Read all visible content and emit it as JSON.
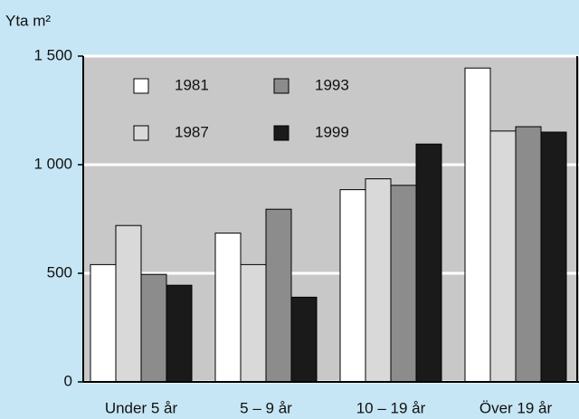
{
  "chart_data": {
    "type": "bar",
    "y_label": "Yta m²",
    "categories": [
      "Under 5 år",
      "5 – 9 år",
      "10 – 19 år",
      "Över 19 år"
    ],
    "series": [
      {
        "name": "1981",
        "color": "#ffffff",
        "values": [
          540,
          685,
          885,
          1445
        ]
      },
      {
        "name": "1987",
        "color": "#d9d9d9",
        "values": [
          720,
          540,
          935,
          1155
        ]
      },
      {
        "name": "1993",
        "color": "#8c8c8c",
        "values": [
          495,
          795,
          905,
          1175
        ]
      },
      {
        "name": "1999",
        "color": "#1a1a1a",
        "values": [
          445,
          390,
          1095,
          1150
        ]
      }
    ],
    "ylim": [
      0,
      1500
    ],
    "yticks": [
      0,
      500,
      {
        "value": 1000,
        "label": "1 000"
      },
      {
        "value": 1500,
        "label": "1 500"
      }
    ],
    "grid": true,
    "legend": "top-left"
  }
}
